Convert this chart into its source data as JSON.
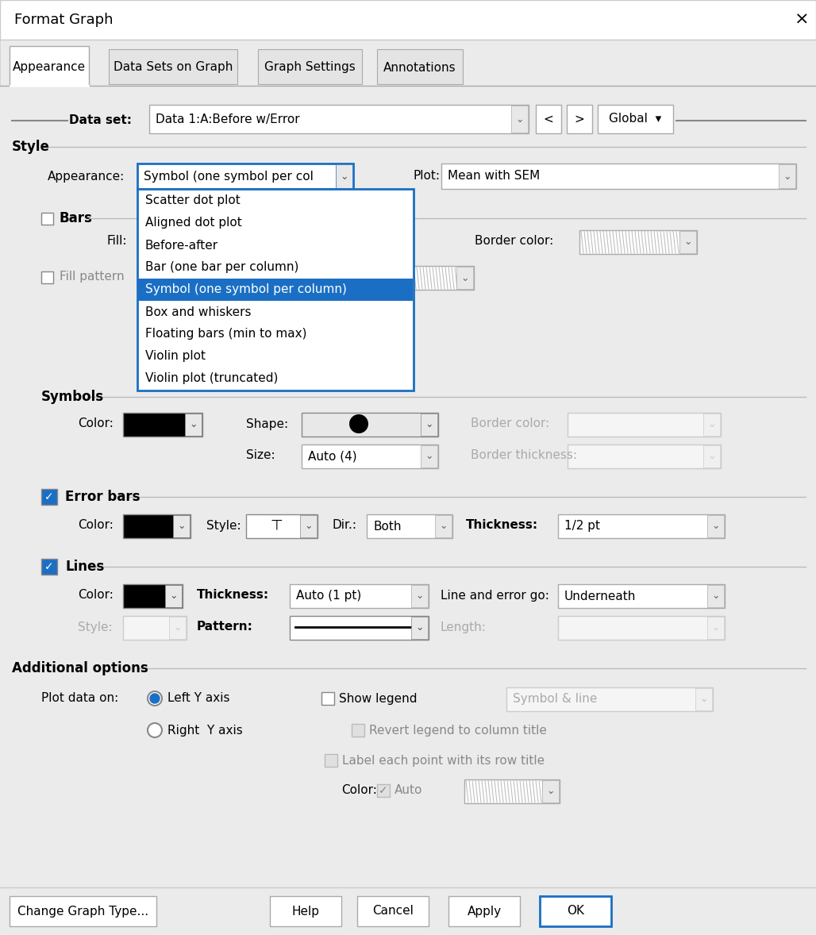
{
  "title": "Format Graph",
  "tabs": [
    "Appearance",
    "Data Sets on Graph",
    "Graph Settings",
    "Annotations"
  ],
  "dataset_label": "Data set:",
  "dataset_value": "Data 1:A:Before w/Error",
  "style_label": "Style",
  "appearance_label": "Appearance:",
  "appearance_value": "Symbol (one symbol per col",
  "plot_label": "Plot:",
  "plot_value": "Mean with SEM",
  "bars_label": "Bars",
  "fill_label": "Fill:",
  "border_color_label": "Border color:",
  "fill_pattern_label": "Fill pattern",
  "dropdown_items": [
    "Scatter dot plot",
    "Aligned dot plot",
    "Before-after",
    "Bar (one bar per column)",
    "Symbol (one symbol per column)",
    "Box and whiskers",
    "Floating bars (min to max)",
    "Violin plot",
    "Violin plot (truncated)"
  ],
  "selected_item": "Symbol (one symbol per column)",
  "symbols_label": "Symbols",
  "color_label": "Color:",
  "shape_label": "Shape:",
  "border_color_sym_label": "Border color:",
  "size_label": "Size:",
  "size_value": "Auto (4)",
  "border_thickness_label": "Border thickness:",
  "error_bars_label": "Error bars",
  "eb_color_label": "Color:",
  "eb_style_label": "Style:",
  "eb_dir_label": "Dir.:",
  "eb_dir_value": "Both",
  "eb_thickness_label": "Thickness:",
  "eb_thickness_value": "1/2 pt",
  "lines_label": "Lines",
  "lines_color_label": "Color:",
  "lines_thickness_label": "Thickness:",
  "lines_thickness_value": "Auto (1 pt)",
  "lines_error_go_label": "Line and error go:",
  "lines_error_go_value": "Underneath",
  "lines_style_label": "Style:",
  "lines_pattern_label": "Pattern:",
  "lines_length_label": "Length:",
  "additional_label": "Additional options",
  "plot_data_label": "Plot data on:",
  "left_y_label": "Left Y axis",
  "right_y_label": "Right  Y axis",
  "show_legend_label": "Show legend",
  "symbol_line_label": "Symbol & line",
  "revert_legend_label": "Revert legend to column title",
  "label_points_label": "Label each point with its row title",
  "color_auto_label": "Color:",
  "auto_label": "Auto",
  "bottom_buttons": [
    "Change Graph Type...",
    "Help",
    "Cancel",
    "Apply",
    "OK"
  ],
  "bg_color": "#ebebeb",
  "white": "#ffffff",
  "black": "#000000",
  "blue_check": "#1a6fc4",
  "selected_bg": "#1a6fc4",
  "border_gray": "#aaaaaa",
  "text_gray": "#999999",
  "light_gray": "#d4d4d4"
}
